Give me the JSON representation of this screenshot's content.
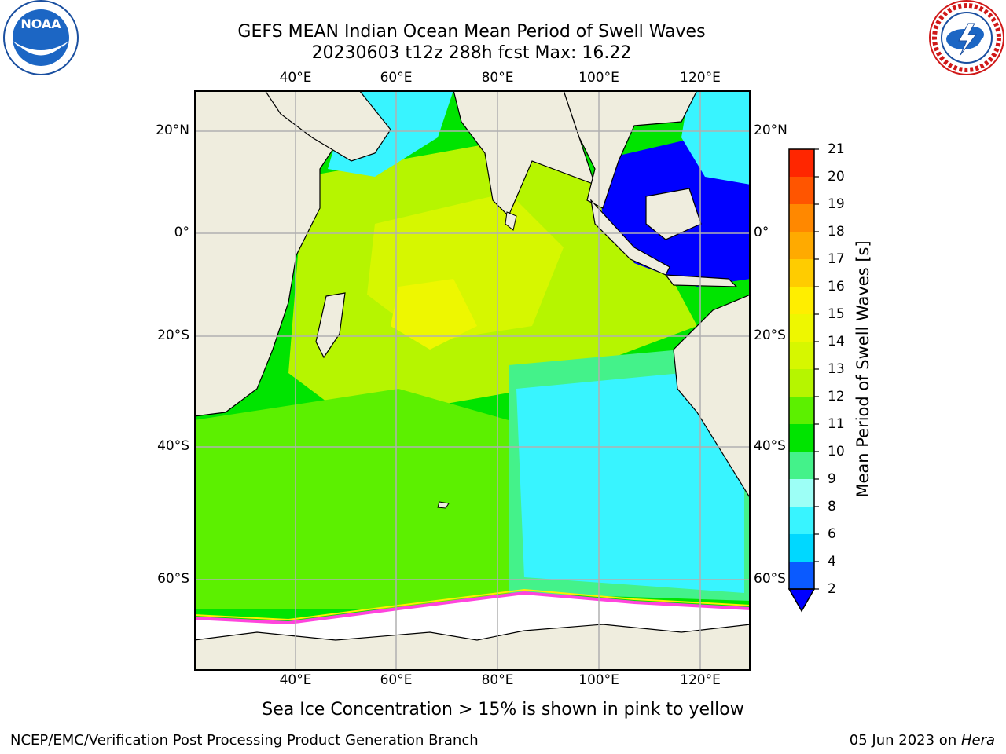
{
  "header": {
    "title": "GEFS MEAN Indian Ocean Mean Period of Swell Waves",
    "subtitle": "20230603 t12z 288h fcst   Max: 16.22"
  },
  "logos": {
    "left": {
      "text": "NOAA",
      "ring_text": "NATIONAL OCEANIC AND ATMOSPHERIC ADMINISTRATION · U.S. DEPARTMENT OF COMMERCE"
    },
    "right": {
      "ring_text": "NATIONAL WEATHER SERVICE"
    }
  },
  "map": {
    "lon_ticks": [
      "40°E",
      "60°E",
      "80°E",
      "100°E",
      "120°E"
    ],
    "lat_ticks": [
      "20°N",
      "0°",
      "20°S",
      "40°S",
      "60°S"
    ],
    "colors": {
      "land": "#efedde",
      "ice": "#ffffff",
      "grid": "#b0b0b0",
      "ice_edge": "#ff44dd"
    }
  },
  "colorbar": {
    "label": "Mean Period of Swell Waves [s]",
    "levels": [
      "2",
      "4",
      "6",
      "8",
      "9",
      "10",
      "11",
      "12",
      "13",
      "14",
      "15",
      "16",
      "17",
      "18",
      "19",
      "20",
      "21"
    ],
    "colors": [
      "#0a5aff",
      "#00d8ff",
      "#38f4ff",
      "#9dfff6",
      "#44f28a",
      "#00e400",
      "#5cf000",
      "#b6f500",
      "#d6f700",
      "#eef700",
      "#ffee00",
      "#ffcc00",
      "#ffaa00",
      "#ff8800",
      "#ff5500",
      "#ff2600"
    ],
    "under_color": "#0000ff",
    "over_color": "#ff0000"
  },
  "note": "Sea Ice Concentration > 15% is shown in pink to yellow",
  "footer": {
    "left": "NCEP/EMC/Verification Post Processing Product Generation Branch",
    "date": "05 Jun 2023 on ",
    "machine": "Hera"
  }
}
